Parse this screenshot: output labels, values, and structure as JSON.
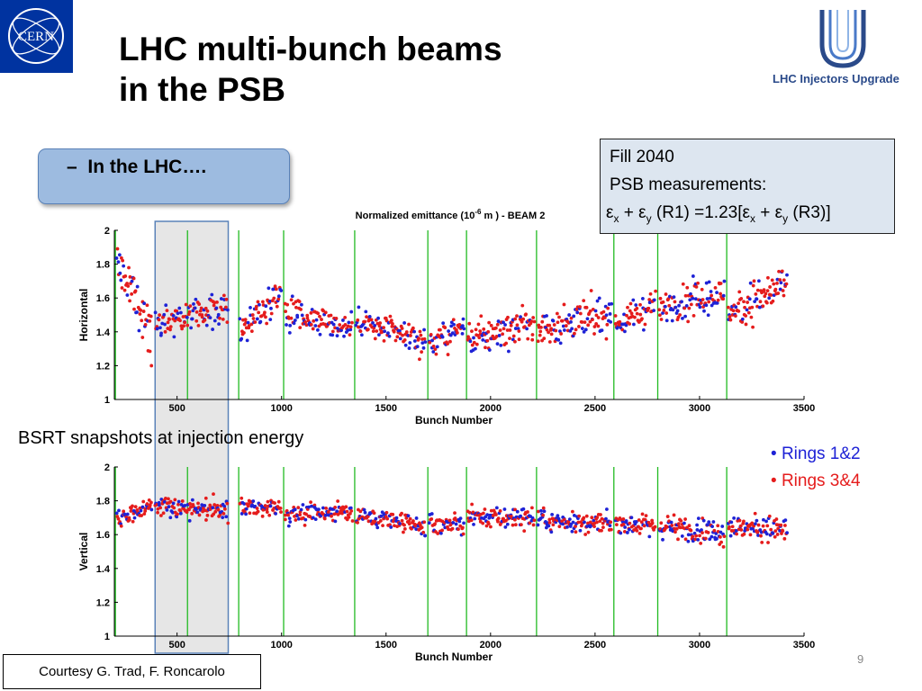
{
  "slide": {
    "title_line1": "LHC multi-bunch beams",
    "title_line2": "in the PSB",
    "logo_left_text": "CERN",
    "logo_right_text": "LHC Injectors Upgrade",
    "bullet": "In the LHC….",
    "bullet_marker": "–",
    "fill_box": {
      "line1": "Fill 2040",
      "line2": "PSB measurements:",
      "eq_symbol": "ε",
      "eq_sub_x": "x",
      "eq_sub_y": "y",
      "eq_plus": " + ",
      "eq_r1": " (R1) =1.23[",
      "eq_r3": " (R3)]"
    },
    "bsrt_label": "BSRT snapshots at injection energy",
    "legend": [
      {
        "label": "Rings 1&2",
        "color": "#1e22d6"
      },
      {
        "label": "Rings 3&4",
        "color": "#e51c1c"
      }
    ],
    "courtesy": "Courtesy G. Trad, F. Roncarolo",
    "page_number": "9",
    "highlight_range": [
      395,
      745
    ]
  },
  "chart_data": [
    {
      "type": "scatter",
      "title": "Normalized emittance (10",
      "title_sup": "-6",
      "title_rest": " m )   - BEAM 2",
      "xlabel": "Bunch Number",
      "ylabel": "Horizontal",
      "xlim": [
        200,
        3500
      ],
      "ylim": [
        1,
        2
      ],
      "xticks": [
        500,
        1000,
        1500,
        2000,
        2500,
        3000,
        3500
      ],
      "yticks": [
        "1",
        "1.2",
        "1.4",
        "1.6",
        "1.8",
        "2"
      ],
      "ytick_values": [
        1,
        1.2,
        1.4,
        1.6,
        1.8,
        2
      ],
      "train_boundaries": [
        205,
        550,
        795,
        1010,
        1350,
        1700,
        1885,
        2220,
        2590,
        2800,
        3130
      ],
      "trains": [
        {
          "x": [
            210,
            380
          ],
          "mean": 1.6,
          "spread": 0.14,
          "trend": -0.22
        },
        {
          "x": [
            395,
            745
          ],
          "mean": 1.5,
          "spread": 0.09,
          "trend": 0.03
        },
        {
          "x": [
            800,
            1000
          ],
          "mean": 1.52,
          "spread": 0.09,
          "trend": 0.12
        },
        {
          "x": [
            1015,
            1340
          ],
          "mean": 1.47,
          "spread": 0.1,
          "trend": -0.05
        },
        {
          "x": [
            1355,
            1690
          ],
          "mean": 1.4,
          "spread": 0.08,
          "trend": -0.06
        },
        {
          "x": [
            1705,
            1875
          ],
          "mean": 1.38,
          "spread": 0.08,
          "trend": 0.05
        },
        {
          "x": [
            1890,
            2210
          ],
          "mean": 1.4,
          "spread": 0.1,
          "trend": 0.06
        },
        {
          "x": [
            2225,
            2580
          ],
          "mean": 1.46,
          "spread": 0.11,
          "trend": 0.05
        },
        {
          "x": [
            2595,
            2790
          ],
          "mean": 1.5,
          "spread": 0.09,
          "trend": 0.06
        },
        {
          "x": [
            2805,
            3120
          ],
          "mean": 1.58,
          "spread": 0.1,
          "trend": 0.04
        },
        {
          "x": [
            3135,
            3420
          ],
          "mean": 1.6,
          "spread": 0.11,
          "trend": 0.08
        }
      ],
      "series": [
        {
          "name": "Rings 1&2",
          "color": "#1e22d6"
        },
        {
          "name": "Rings 3&4",
          "color": "#e51c1c"
        }
      ],
      "boundary_color": "#22bb22",
      "grid": false
    },
    {
      "type": "scatter",
      "xlabel": "Bunch Number",
      "ylabel": "Vertical",
      "xlim": [
        200,
        3500
      ],
      "ylim": [
        1,
        2
      ],
      "xticks": [
        500,
        1000,
        1500,
        2000,
        2500,
        3000,
        3500
      ],
      "yticks": [
        "1",
        "1.2",
        "1.4",
        "1.6",
        "1.8",
        "2"
      ],
      "ytick_values": [
        1,
        1.2,
        1.4,
        1.6,
        1.8,
        2
      ],
      "train_boundaries": [
        205,
        550,
        795,
        1010,
        1350,
        1700,
        1885,
        2220,
        2590,
        2800,
        3130
      ],
      "trains": [
        {
          "x": [
            210,
            380
          ],
          "mean": 1.73,
          "spread": 0.05,
          "trend": 0.04
        },
        {
          "x": [
            395,
            745
          ],
          "mean": 1.76,
          "spread": 0.06,
          "trend": -0.02
        },
        {
          "x": [
            800,
            1000
          ],
          "mean": 1.76,
          "spread": 0.05,
          "trend": 0.0
        },
        {
          "x": [
            1015,
            1340
          ],
          "mean": 1.73,
          "spread": 0.05,
          "trend": 0.01
        },
        {
          "x": [
            1355,
            1690
          ],
          "mean": 1.68,
          "spread": 0.06,
          "trend": -0.04
        },
        {
          "x": [
            1705,
            1875
          ],
          "mean": 1.66,
          "spread": 0.06,
          "trend": 0.0
        },
        {
          "x": [
            1890,
            2210
          ],
          "mean": 1.7,
          "spread": 0.06,
          "trend": 0.0
        },
        {
          "x": [
            2225,
            2580
          ],
          "mean": 1.67,
          "spread": 0.06,
          "trend": -0.01
        },
        {
          "x": [
            2595,
            2790
          ],
          "mean": 1.66,
          "spread": 0.06,
          "trend": -0.02
        },
        {
          "x": [
            2805,
            3120
          ],
          "mean": 1.63,
          "spread": 0.07,
          "trend": -0.02
        },
        {
          "x": [
            3135,
            3420
          ],
          "mean": 1.64,
          "spread": 0.07,
          "trend": -0.01
        }
      ],
      "series": [
        {
          "name": "Rings 1&2",
          "color": "#1e22d6"
        },
        {
          "name": "Rings 3&4",
          "color": "#e51c1c"
        }
      ],
      "boundary_color": "#22bb22",
      "grid": false
    }
  ]
}
